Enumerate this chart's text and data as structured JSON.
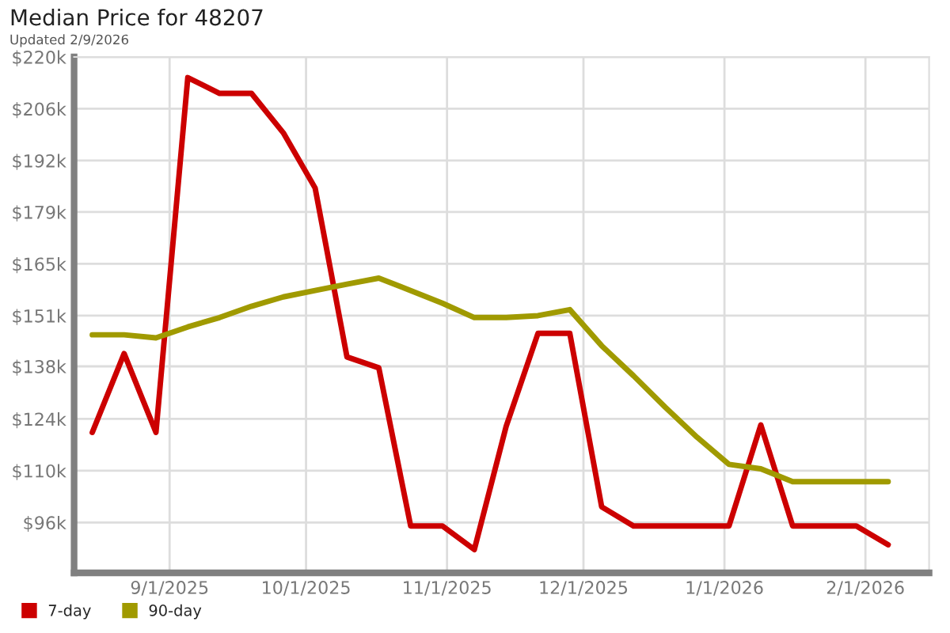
{
  "chart_data": {
    "type": "line",
    "title": "Median Price for 48207",
    "subtitle": "Updated 2/9/2026",
    "x": [
      "2025-08-15",
      "2025-08-22",
      "2025-08-29",
      "2025-09-05",
      "2025-09-12",
      "2025-09-19",
      "2025-09-26",
      "2025-10-03",
      "2025-10-10",
      "2025-10-17",
      "2025-10-24",
      "2025-10-31",
      "2025-11-07",
      "2025-11-14",
      "2025-11-21",
      "2025-11-28",
      "2025-12-05",
      "2025-12-12",
      "2025-12-19",
      "2025-12-26",
      "2026-01-02",
      "2026-01-09",
      "2026-01-16",
      "2026-01-23",
      "2026-01-30",
      "2026-02-06"
    ],
    "series": [
      {
        "name": "7-day",
        "color": "#cc0000",
        "values": [
          120,
          141,
          120,
          214.5,
          210.3,
          210.3,
          199.8,
          185.1,
          140.1,
          137.2,
          95.1,
          95.1,
          88.8,
          121.6,
          146.4,
          146.4,
          100.2,
          95.1,
          95.1,
          95.1,
          95.1,
          122.0,
          95.1,
          95.1,
          95.1,
          90.1
        ]
      },
      {
        "name": "90-day",
        "color": "#a09a00",
        "values": [
          146.0,
          146.0,
          145.2,
          148.1,
          150.6,
          153.6,
          156.1,
          157.8,
          159.5,
          161.1,
          157.8,
          154.4,
          150.6,
          150.6,
          151.1,
          152.7,
          143.1,
          135.1,
          126.7,
          118.7,
          111.5,
          110.3,
          106.9,
          106.9,
          106.9,
          106.9
        ]
      }
    ],
    "xlim": [
      "2025-08-11",
      "2026-02-15"
    ],
    "xticks": [
      {
        "value": "2025-09-01",
        "label": "9/1/2025"
      },
      {
        "value": "2025-10-01",
        "label": "10/1/2025"
      },
      {
        "value": "2025-11-01",
        "label": "11/1/2025"
      },
      {
        "value": "2025-12-01",
        "label": "12/1/2025"
      },
      {
        "value": "2026-01-01",
        "label": "1/1/2026"
      },
      {
        "value": "2026-02-01",
        "label": "2/1/2026"
      }
    ],
    "ylim": [
      82.6,
      220
    ],
    "yticks": [
      {
        "value": 96,
        "label": "$96k"
      },
      {
        "value": 109.8,
        "label": "$110k"
      },
      {
        "value": 123.6,
        "label": "$124k"
      },
      {
        "value": 137.6,
        "label": "$138k"
      },
      {
        "value": 151.1,
        "label": "$151k"
      },
      {
        "value": 164.9,
        "label": "$165k"
      },
      {
        "value": 178.7,
        "label": "$179k"
      },
      {
        "value": 192.4,
        "label": "$192k"
      },
      {
        "value": 206.2,
        "label": "$206k"
      },
      {
        "value": 220,
        "label": "$220k"
      }
    ],
    "grid": true,
    "legend": "bottom left",
    "marker": "none",
    "line_style": "solid"
  }
}
